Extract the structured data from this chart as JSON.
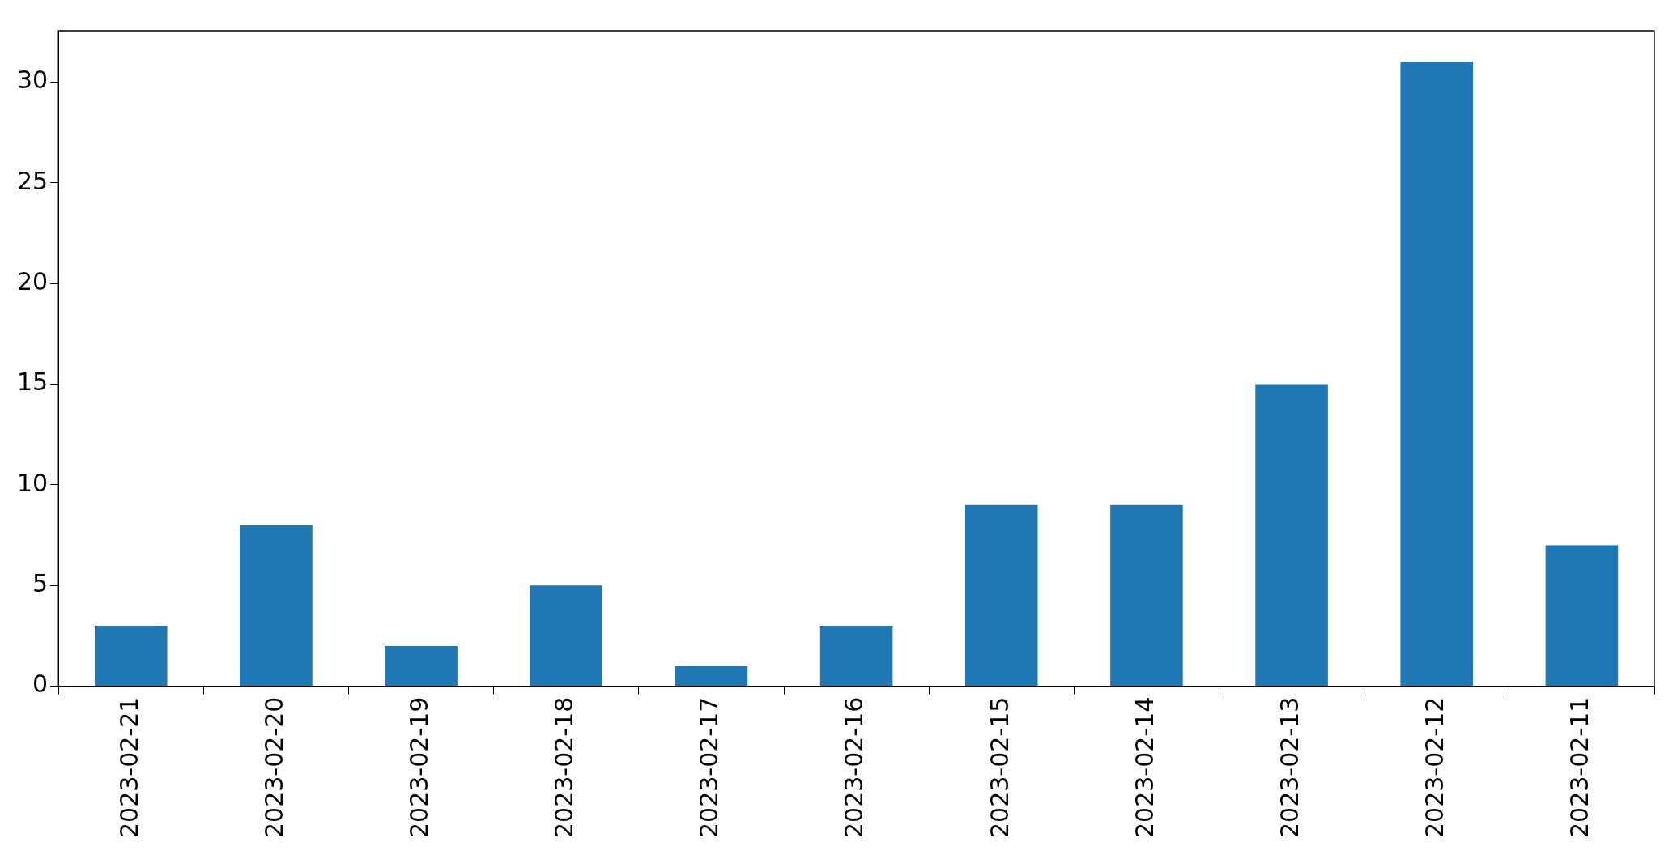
{
  "chart_data": {
    "type": "bar",
    "categories": [
      "2023-02-21",
      "2023-02-20",
      "2023-02-19",
      "2023-02-18",
      "2023-02-17",
      "2023-02-16",
      "2023-02-15",
      "2023-02-14",
      "2023-02-13",
      "2023-02-12",
      "2023-02-11"
    ],
    "values": [
      3,
      8,
      2,
      5,
      1,
      3,
      9,
      9,
      15,
      31,
      7
    ],
    "color": "#1f77b4",
    "ylim": [
      0,
      32.55
    ],
    "yticks": [
      0,
      5,
      10,
      15,
      20,
      25,
      30
    ],
    "grid": false,
    "legend": false
  }
}
